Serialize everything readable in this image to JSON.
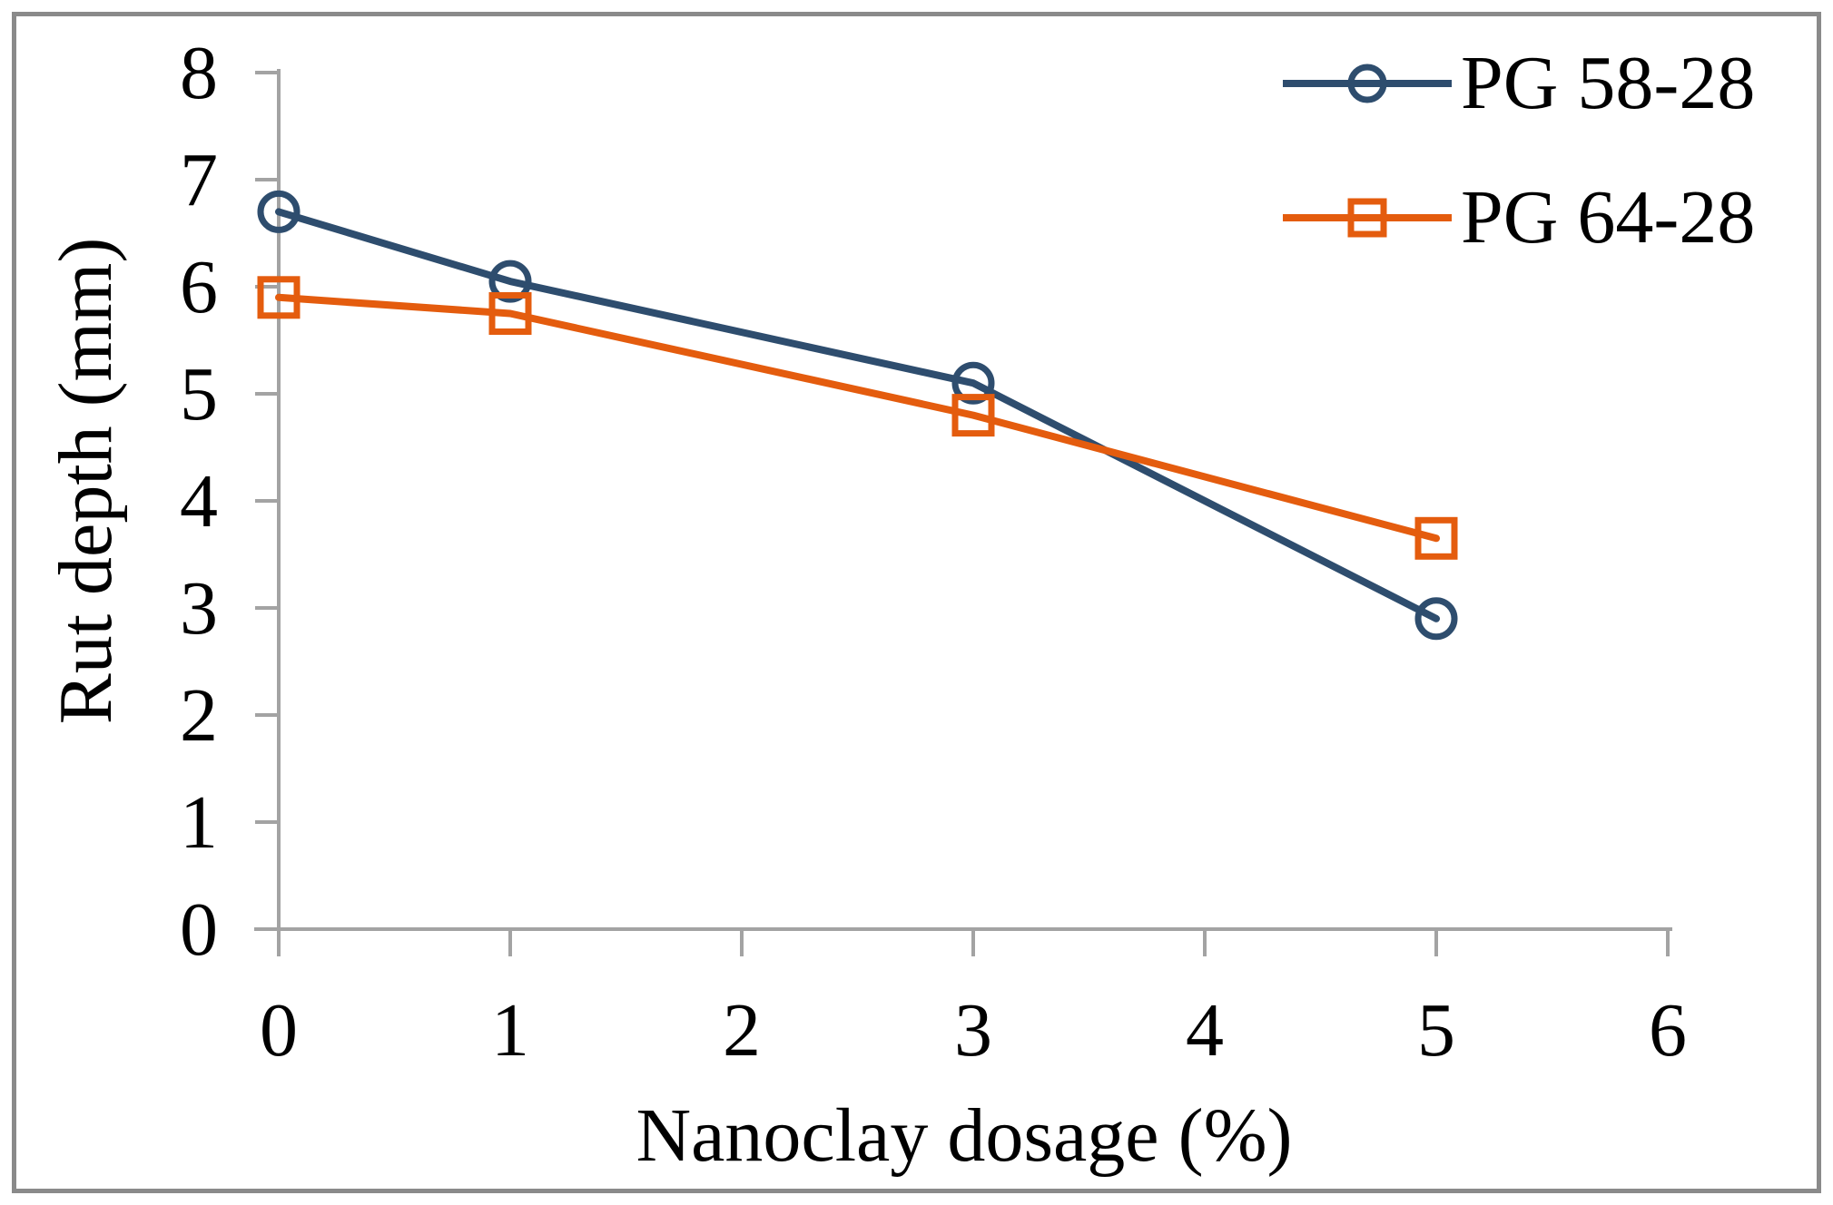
{
  "chart_data": {
    "type": "line",
    "title": "",
    "xlabel": "Nanoclay dosage (%)",
    "ylabel": "Rut depth (mm)",
    "xlim": [
      0,
      6
    ],
    "ylim": [
      0,
      8
    ],
    "xticks": [
      "0",
      "1",
      "2",
      "3",
      "4",
      "5",
      "6"
    ],
    "yticks": [
      "0",
      "1",
      "2",
      "3",
      "4",
      "5",
      "6",
      "7",
      "8"
    ],
    "grid": false,
    "legend_position": "top-right",
    "x": [
      0,
      1,
      3,
      5
    ],
    "series": [
      {
        "name": "PG 58-28",
        "marker": "circle",
        "color": "#2e4d6e",
        "values": [
          6.7,
          6.05,
          5.1,
          2.9
        ]
      },
      {
        "name": "PG 64-28",
        "marker": "square",
        "color": "#e45c0e",
        "values": [
          5.9,
          5.75,
          4.8,
          3.65
        ]
      }
    ],
    "colors": {
      "axis": "#a3a3a3",
      "text": "#000000",
      "figure_border": "#8a8a8a",
      "background": "#ffffff"
    }
  }
}
